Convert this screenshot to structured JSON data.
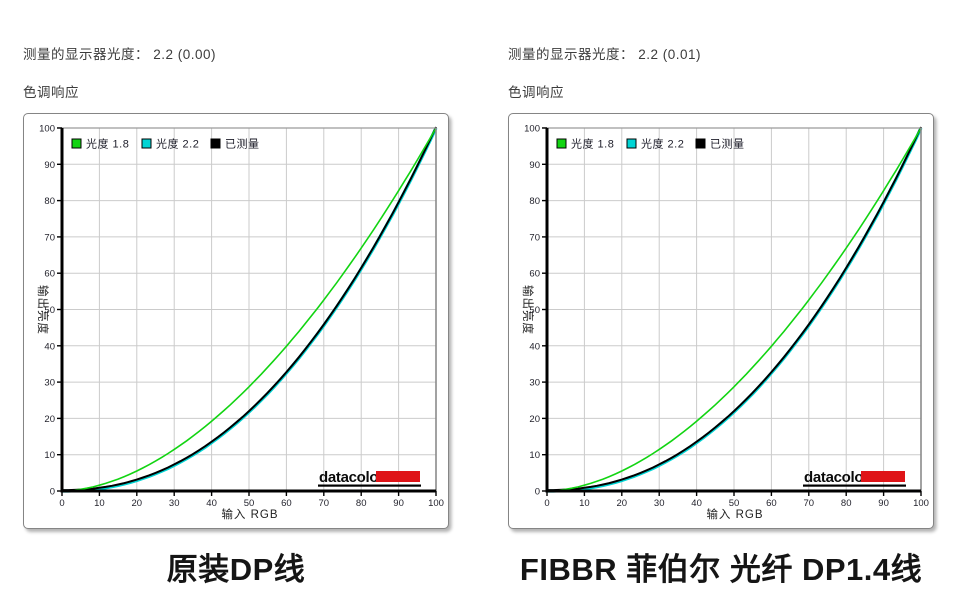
{
  "page": {
    "background_color": "#ffffff"
  },
  "chart_data": [
    {
      "type": "line",
      "header": "测量的显示器光度： 2.2 (0.00)",
      "title": "色调响应",
      "caption": "原装DP线",
      "xlabel": "输入 RGB",
      "ylabel": "输出亮度",
      "xlim": [
        0,
        100
      ],
      "ylim": [
        0,
        100
      ],
      "xticks": [
        0,
        10,
        20,
        30,
        40,
        50,
        60,
        70,
        80,
        90,
        100
      ],
      "yticks": [
        0,
        10,
        20,
        30,
        40,
        50,
        60,
        70,
        80,
        90,
        100
      ],
      "grid": true,
      "grid_color": "#cbcbcb",
      "legend_position": "top-left-inside",
      "series": [
        {
          "name": "光度 1.8",
          "color": "#12d412",
          "gamma": 1.8,
          "x": [
            0,
            10,
            20,
            30,
            40,
            50,
            60,
            70,
            80,
            90,
            100
          ],
          "values": [
            0,
            1.6,
            5.5,
            11.5,
            19.2,
            28.7,
            39.9,
            52.6,
            66.9,
            82.7,
            100
          ]
        },
        {
          "name": "光度 2.2",
          "color": "#00d4d4",
          "gamma": 2.2,
          "x": [
            0,
            10,
            20,
            30,
            40,
            50,
            60,
            70,
            80,
            90,
            100
          ],
          "values": [
            0,
            0.6,
            2.9,
            7.1,
            13.3,
            21.8,
            32.5,
            45.6,
            61.2,
            79.3,
            100
          ]
        },
        {
          "name": "已测量",
          "color": "#000000",
          "gamma": 2.2,
          "x": [
            0,
            10,
            20,
            30,
            40,
            50,
            60,
            70,
            80,
            90,
            100
          ],
          "values": [
            0,
            0.6,
            2.9,
            7.1,
            13.3,
            21.8,
            32.5,
            45.6,
            61.2,
            79.3,
            100
          ]
        }
      ],
      "logo": {
        "text": "datacolor",
        "accent_color": "#df1418"
      }
    },
    {
      "type": "line",
      "header": "测量的显示器光度： 2.2 (0.01)",
      "title": "色调响应",
      "caption": "FIBBR 菲伯尔 光纤 DP1.4线",
      "xlabel": "输入 RGB",
      "ylabel": "输出亮度",
      "xlim": [
        0,
        100
      ],
      "ylim": [
        0,
        100
      ],
      "xticks": [
        0,
        10,
        20,
        30,
        40,
        50,
        60,
        70,
        80,
        90,
        100
      ],
      "yticks": [
        0,
        10,
        20,
        30,
        40,
        50,
        60,
        70,
        80,
        90,
        100
      ],
      "grid": true,
      "grid_color": "#cbcbcb",
      "legend_position": "top-left-inside",
      "series": [
        {
          "name": "光度 1.8",
          "color": "#12d412",
          "gamma": 1.8,
          "x": [
            0,
            10,
            20,
            30,
            40,
            50,
            60,
            70,
            80,
            90,
            100
          ],
          "values": [
            0,
            1.6,
            5.5,
            11.5,
            19.2,
            28.7,
            39.9,
            52.6,
            66.9,
            82.7,
            100
          ]
        },
        {
          "name": "光度 2.2",
          "color": "#00d4d4",
          "gamma": 2.2,
          "x": [
            0,
            10,
            20,
            30,
            40,
            50,
            60,
            70,
            80,
            90,
            100
          ],
          "values": [
            0,
            0.6,
            2.9,
            7.1,
            13.3,
            21.8,
            32.5,
            45.6,
            61.2,
            79.3,
            100
          ]
        },
        {
          "name": "已测量",
          "color": "#000000",
          "gamma": 2.2,
          "x": [
            0,
            10,
            20,
            30,
            40,
            50,
            60,
            70,
            80,
            90,
            100
          ],
          "values": [
            0,
            0.6,
            2.9,
            7.1,
            13.3,
            21.8,
            32.5,
            45.6,
            61.2,
            79.3,
            100
          ]
        }
      ],
      "logo": {
        "text": "datacolor",
        "accent_color": "#df1418"
      }
    }
  ]
}
